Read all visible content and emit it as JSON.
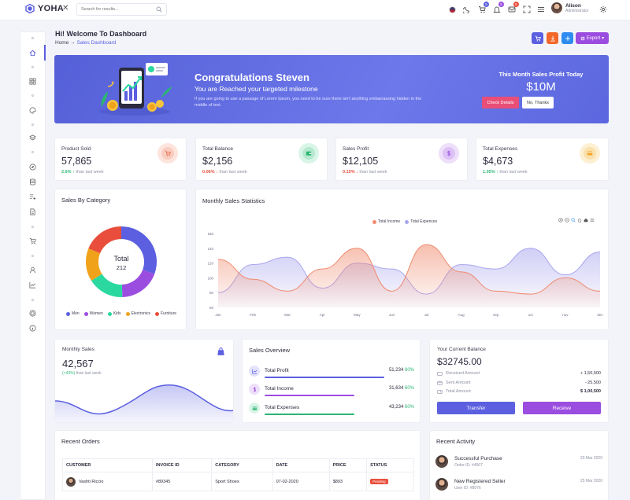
{
  "brand": {
    "name": "YOHA"
  },
  "search": {
    "placeholder": "Search for results..."
  },
  "topbar": {
    "cart_badge": "5",
    "notif_badge": "5",
    "msg_badge": "5"
  },
  "user": {
    "name": "Alison",
    "role": "Administrator"
  },
  "page": {
    "title": "Hi! Welcome To Dashboard",
    "breadcrumb_home": "Home",
    "breadcrumb_sep": "→",
    "breadcrumb_current": "Sales Dashboard"
  },
  "actions": {
    "export_label": "Export"
  },
  "hero": {
    "title": "Congratulations Steven",
    "subtitle": "You are Reached your targeted milestone",
    "text": "If you are going to use a passage of Lorem Ipsum, you need to be sure there isn't anything embarrassing hidden in the middle of text.",
    "profit_label": "This Month Sales Profit Today",
    "profit_value": "$10M",
    "check_label": "Check Details",
    "no_label": "No, Thanks"
  },
  "stats": [
    {
      "label": "Product Sold",
      "value": "57,865",
      "pct": "2.6%",
      "arrow": "↑",
      "suffix": "than last week",
      "color": "#e96b4c",
      "bg": "#fde5de",
      "icon": "cart-icon"
    },
    {
      "label": "Total Balance",
      "value": "$2,156",
      "pct": "0.06%",
      "arrow": "↓",
      "suffix": "than last week",
      "color": "#2bb673",
      "bg": "#d9f5e8",
      "icon": "wallet-icon"
    },
    {
      "label": "Sales Profit",
      "value": "$12,105",
      "pct": "0.15%",
      "arrow": "↓",
      "suffix": "than last week",
      "color": "#9b4de0",
      "bg": "#eedffa",
      "icon": "dollar-icon"
    },
    {
      "label": "Total Expenses",
      "value": "$4,673",
      "pct": "1.05%",
      "arrow": "↑",
      "suffix": "than last week",
      "color": "#f0a31a",
      "bg": "#fdefd2",
      "icon": "card-icon"
    }
  ],
  "category_chart": {
    "title": "Sales By Category",
    "chart_data": {
      "type": "pie",
      "center_label": "Total",
      "center_value": "212",
      "categories": [
        "Men",
        "Women",
        "Kids",
        "Electronics",
        "Furniture"
      ],
      "values": [
        65,
        40,
        35,
        32,
        40
      ],
      "colors": [
        "#5b5fe0",
        "#9b4de0",
        "#2bd9a0",
        "#f0a31a",
        "#e94e3c"
      ]
    }
  },
  "monthly_stats": {
    "title": "Monthly Sales Statistics",
    "chart_data": {
      "type": "area",
      "x": [
        "Jan",
        "Feb",
        "Mar",
        "Apr",
        "May",
        "Jun",
        "Jul",
        "Aug",
        "sep",
        "oct",
        "nov",
        "dec"
      ],
      "ylim": [
        60,
        160
      ],
      "yticks": [
        "160",
        "140",
        "120",
        "100",
        "80",
        "60"
      ],
      "series": [
        {
          "name": "Total Income",
          "color": "#f08a6e",
          "values": [
            125,
            98,
            82,
            112,
            140,
            82,
            145,
            108,
            82,
            78,
            100,
            82
          ]
        },
        {
          "name": "Total Expences",
          "color": "#a9a6ee",
          "values": [
            80,
            118,
            128,
            86,
            120,
            112,
            78,
            118,
            112,
            140,
            104,
            135
          ]
        }
      ]
    }
  },
  "monthly_sales": {
    "label": "Monthly Sales",
    "value": "42,567",
    "change": "(+43%)",
    "change_suffix": "than last week"
  },
  "sales_overview": {
    "title": "Sales Overview",
    "rows": [
      {
        "name": "Total Profit",
        "value": "51,234",
        "pct": "80%",
        "color": "#5b5fe0",
        "bg": "#e3e4fb",
        "fill": 0.8,
        "icon": "chart-icon"
      },
      {
        "name": "Total Income",
        "value": "31,634",
        "pct": "60%",
        "color": "#9b4de0",
        "bg": "#eedffa",
        "fill": 0.6,
        "icon": "dollar-icon"
      },
      {
        "name": "Total Expenses",
        "value": "43,234",
        "pct": "60%",
        "color": "#2bb673",
        "bg": "#d9f5e8",
        "fill": 0.6,
        "icon": "card-icon"
      }
    ]
  },
  "balance": {
    "label": "Your Current Balance",
    "value": "$32745.00",
    "rows": [
      {
        "label": "Received Amount",
        "value": "+ 1,50,500"
      },
      {
        "label": "Sent Amount",
        "value": "- 25,500"
      },
      {
        "label": "Total Amount",
        "value": "$ 1,00,500"
      }
    ],
    "transfer_label": "Transfer",
    "receive_label": "Receive"
  },
  "orders": {
    "title": "Recent Orders",
    "columns": [
      "CUSTOMER",
      "INVOICE ID",
      "CATEGORY",
      "DATE",
      "PRICE",
      "STATUS"
    ],
    "rows": [
      {
        "customer": "Vashti Riccio",
        "invoice": "#89345",
        "category": "Sport Shoes",
        "date": "07-02-2020",
        "price": "$893",
        "status": "Pending",
        "status_color": "#e94e3c"
      }
    ]
  },
  "activity": {
    "title": "Recent Activity",
    "items": [
      {
        "title": "Successful Purchase",
        "sub": "Order ID: #4567",
        "date": "29 Mar 2020"
      },
      {
        "title": "New Registered Seller",
        "sub": "User ID: #8976",
        "date": "25 Mar 2020"
      }
    ]
  }
}
